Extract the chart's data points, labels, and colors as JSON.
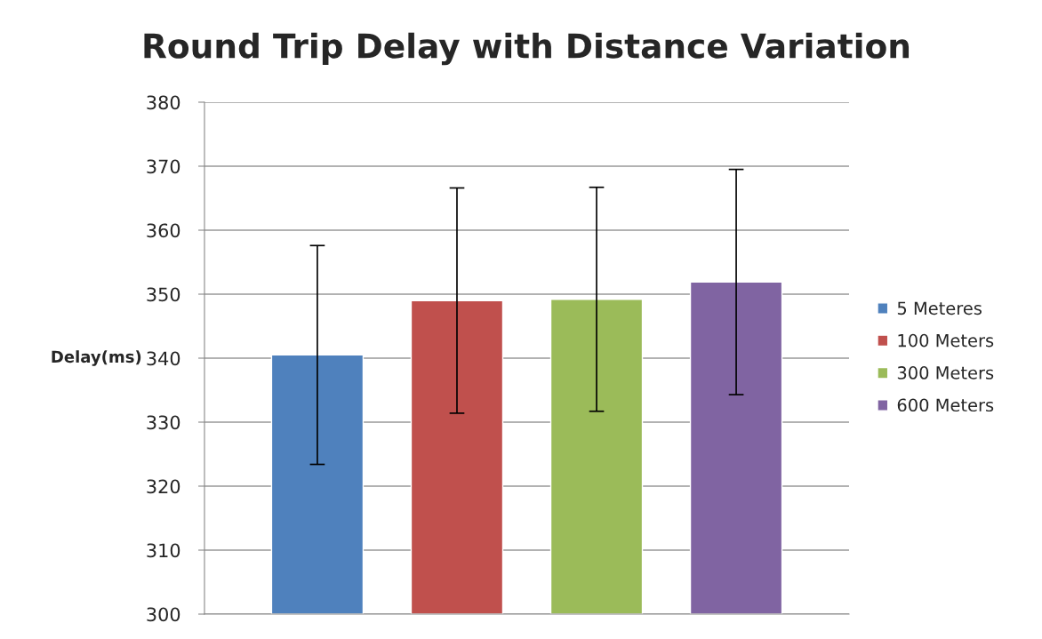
{
  "chart_data": {
    "type": "bar",
    "title": "Round Trip Delay with Distance Variation",
    "ylabel": "Delay(ms)",
    "categories": [
      null
    ],
    "series": [
      {
        "name": "5 Meteres",
        "color": "#4f81bd",
        "values": [
          340.5
        ],
        "errors": [
          17.1
        ]
      },
      {
        "name": "100 Meters",
        "color": "#c0504d",
        "values": [
          349.0
        ],
        "errors": [
          17.6
        ]
      },
      {
        "name": "300 Meters",
        "color": "#9bbb59",
        "values": [
          349.2
        ],
        "errors": [
          17.5
        ]
      },
      {
        "name": "600 Meters",
        "color": "#8064a2",
        "values": [
          351.9
        ],
        "errors": [
          17.6
        ]
      }
    ],
    "ylim": [
      300,
      380
    ],
    "yticks": [
      300,
      310,
      320,
      330,
      340,
      350,
      360,
      370,
      380
    ],
    "grid": "y",
    "legend": "right"
  }
}
